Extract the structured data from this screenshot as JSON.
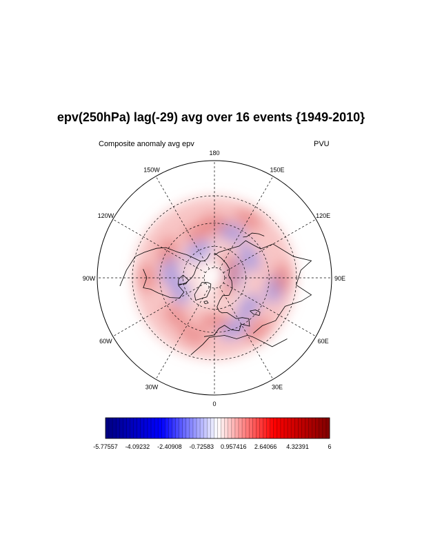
{
  "figure": {
    "title": "epv(250hPa) lag(-29) avg over 16 events {1949-2010}",
    "left_string": "Composite anomaly avg epv",
    "right_string": "PVU",
    "projection": "North polar stereographic"
  },
  "map": {
    "longitude_labels": [
      {
        "lon": 180,
        "text": "180"
      },
      {
        "lon": 150,
        "text": "150E"
      },
      {
        "lon": 120,
        "text": "120E"
      },
      {
        "lon": 90,
        "text": "90E"
      },
      {
        "lon": 60,
        "text": "60E"
      },
      {
        "lon": 30,
        "text": "30E"
      },
      {
        "lon": 0,
        "text": "0"
      },
      {
        "lon": -30,
        "text": "30W"
      },
      {
        "lon": -60,
        "text": "60W"
      },
      {
        "lon": -90,
        "text": "90W"
      },
      {
        "lon": -120,
        "text": "120W"
      },
      {
        "lon": -150,
        "text": "150W"
      }
    ],
    "latitude_circles": [
      20,
      40,
      60,
      80
    ]
  },
  "colorbar": {
    "min": -5.77557,
    "max": 6,
    "levels": 64,
    "tick_labels": [
      "-5.77557",
      "-4.09232",
      "-2.40908",
      "-0.72583",
      "0.957416",
      "2.64066",
      "4.32391",
      "6"
    ],
    "colors": {
      "low": "#000080",
      "mid": "#ffffff",
      "high": "#800000"
    }
  },
  "anomalies": [
    {
      "sign": "neg",
      "lon": 160,
      "lat": 45
    },
    {
      "sign": "neg",
      "lon": 120,
      "lat": 52
    },
    {
      "sign": "neg",
      "lon": 100,
      "lat": 70
    },
    {
      "sign": "neg",
      "lon": -100,
      "lat": 48
    },
    {
      "sign": "neg",
      "lon": -70,
      "lat": 55
    },
    {
      "sign": "neg",
      "lon": -150,
      "lat": 60
    },
    {
      "sign": "neg",
      "lon": 50,
      "lat": 48
    },
    {
      "sign": "neg",
      "lon": 20,
      "lat": 40
    },
    {
      "sign": "neg",
      "lon": 80,
      "lat": 35
    },
    {
      "sign": "pos",
      "lon": 180,
      "lat": 40
    },
    {
      "sign": "pos",
      "lon": -120,
      "lat": 40
    },
    {
      "sign": "pos",
      "lon": -160,
      "lat": 45
    },
    {
      "sign": "pos",
      "lon": -20,
      "lat": 35
    },
    {
      "sign": "pos",
      "lon": 0,
      "lat": 50
    },
    {
      "sign": "pos",
      "lon": 40,
      "lat": 30
    },
    {
      "sign": "pos",
      "lon": 130,
      "lat": 70
    },
    {
      "sign": "pos",
      "lon": 150,
      "lat": 30
    },
    {
      "sign": "pos",
      "lon": 90,
      "lat": 30
    },
    {
      "sign": "pos",
      "lon": -90,
      "lat": 30
    },
    {
      "sign": "pos",
      "lon": -45,
      "lat": 40
    },
    {
      "sign": "pos",
      "lon": 60,
      "lat": 75
    }
  ]
}
